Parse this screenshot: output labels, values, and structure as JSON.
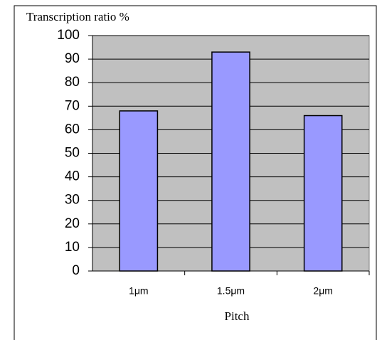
{
  "chart_data": {
    "type": "bar",
    "title": "Transcription ratio %",
    "x_label": "Pitch",
    "categories": [
      "1μm",
      "1.5μm",
      "2μm"
    ],
    "values": [
      68,
      93,
      66
    ],
    "color": "#9999ff",
    "ylim": [
      0,
      100
    ],
    "yticks": [
      0,
      10,
      20,
      30,
      40,
      50,
      60,
      70,
      80,
      90,
      100
    ],
    "grid": true
  }
}
